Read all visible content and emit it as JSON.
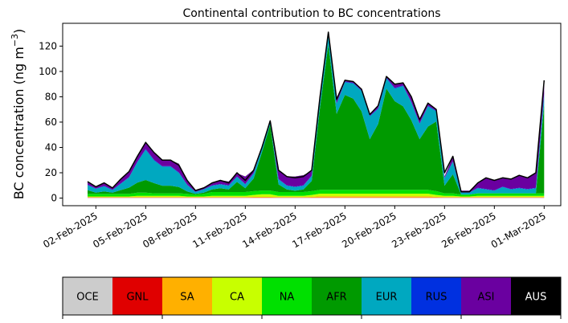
{
  "chart_data": {
    "type": "area",
    "title": "Continental contribution to BC concentrations",
    "ylabel_main": "BC concentration (ng m",
    "ylabel_exp": "−3",
    "ylabel_close": ")",
    "stacked": true,
    "xlim": [
      "2025-01-31T00:00",
      "2025-03-02T00:00"
    ],
    "ylim": [
      -6,
      138
    ],
    "y_ticks": [
      0,
      20,
      40,
      60,
      80,
      100,
      120
    ],
    "x_ticks": [
      {
        "date": "2025-02-02",
        "label": "02-Feb-2025"
      },
      {
        "date": "2025-02-05",
        "label": "05-Feb-2025"
      },
      {
        "date": "2025-02-08",
        "label": "08-Feb-2025"
      },
      {
        "date": "2025-02-11",
        "label": "11-Feb-2025"
      },
      {
        "date": "2025-02-14",
        "label": "14-Feb-2025"
      },
      {
        "date": "2025-02-17",
        "label": "17-Feb-2025"
      },
      {
        "date": "2025-02-20",
        "label": "20-Feb-2025"
      },
      {
        "date": "2025-02-23",
        "label": "23-Feb-2025"
      },
      {
        "date": "2025-02-26",
        "label": "26-Feb-2025"
      },
      {
        "date": "2025-03-01",
        "label": "01-Mar-2025"
      }
    ],
    "x": [
      "2025-02-01T12:00",
      "2025-02-02T00:00",
      "2025-02-02T12:00",
      "2025-02-03T00:00",
      "2025-02-03T12:00",
      "2025-02-04T00:00",
      "2025-02-04T12:00",
      "2025-02-05T00:00",
      "2025-02-05T12:00",
      "2025-02-06T00:00",
      "2025-02-06T12:00",
      "2025-02-07T00:00",
      "2025-02-07T12:00",
      "2025-02-08T00:00",
      "2025-02-08T12:00",
      "2025-02-09T00:00",
      "2025-02-09T12:00",
      "2025-02-10T00:00",
      "2025-02-10T12:00",
      "2025-02-11T00:00",
      "2025-02-11T12:00",
      "2025-02-12T00:00",
      "2025-02-12T12:00",
      "2025-02-13T00:00",
      "2025-02-13T12:00",
      "2025-02-14T00:00",
      "2025-02-14T12:00",
      "2025-02-15T00:00",
      "2025-02-15T12:00",
      "2025-02-16T00:00",
      "2025-02-16T12:00",
      "2025-02-17T00:00",
      "2025-02-17T12:00",
      "2025-02-18T00:00",
      "2025-02-18T12:00",
      "2025-02-19T00:00",
      "2025-02-19T12:00",
      "2025-02-20T00:00",
      "2025-02-20T12:00",
      "2025-02-21T00:00",
      "2025-02-21T12:00",
      "2025-02-22T00:00",
      "2025-02-22T12:00",
      "2025-02-23T00:00",
      "2025-02-23T12:00",
      "2025-02-24T00:00",
      "2025-02-24T12:00",
      "2025-02-25T00:00",
      "2025-02-25T12:00",
      "2025-02-26T00:00",
      "2025-02-26T12:00",
      "2025-02-27T00:00",
      "2025-02-27T12:00",
      "2025-02-28T00:00",
      "2025-02-28T12:00",
      "2025-03-01T00:00"
    ],
    "total": [
      13,
      9,
      12,
      8,
      15,
      21,
      33,
      44,
      36,
      30,
      30,
      26,
      14,
      6,
      8,
      12,
      14,
      12,
      20,
      14,
      22,
      40,
      61,
      22,
      17,
      16,
      17,
      22,
      80,
      131,
      78,
      93,
      92,
      86,
      66,
      73,
      96,
      90,
      91,
      80,
      62,
      75,
      70,
      20,
      33,
      5,
      5,
      12,
      16,
      14,
      16,
      15,
      18,
      16,
      20,
      93
    ],
    "series": [
      {
        "name": "OCE",
        "color": "#cccccc",
        "values": [
          0.3,
          0.3,
          0.3,
          0.3,
          0.3,
          0.3,
          0.3,
          0.3,
          0.3,
          0.3,
          0.3,
          0.3,
          0.3,
          0.3,
          0.3,
          0.3,
          0.3,
          0.3,
          0.3,
          0.3,
          0.3,
          0.3,
          0.3,
          0.3,
          0.3,
          0.3,
          0.3,
          0.3,
          0.3,
          0.3,
          0.3,
          0.3,
          0.3,
          0.3,
          0.3,
          0.3,
          0.3,
          0.3,
          0.3,
          0.3,
          0.3,
          0.3,
          0.3,
          0.3,
          0.3,
          0.3,
          0.3,
          0.3,
          0.3,
          0.3,
          0.3,
          0.3,
          0.3,
          0.3,
          0.3,
          0.3
        ]
      },
      {
        "name": "GNL",
        "color": "#e00000",
        "values": [
          0.2,
          0.2,
          0.2,
          0.2,
          0.2,
          0.2,
          0.2,
          0.2,
          0.2,
          0.2,
          0.2,
          0.2,
          0.2,
          0.2,
          0.2,
          0.2,
          0.2,
          0.2,
          0.2,
          0.2,
          0.2,
          0.2,
          0.2,
          0.2,
          0.2,
          0.2,
          0.2,
          0.2,
          0.2,
          0.2,
          0.2,
          0.2,
          0.2,
          0.2,
          0.2,
          0.2,
          0.2,
          0.2,
          0.2,
          0.2,
          0.2,
          0.2,
          0.2,
          0.2,
          0.2,
          0.2,
          0.2,
          0.2,
          0.2,
          0.2,
          0.2,
          0.2,
          0.2,
          0.2,
          0.2,
          0.2
        ]
      },
      {
        "name": "SA",
        "color": "#ffb000",
        "values": [
          0.3,
          0.3,
          0.3,
          0.3,
          0.3,
          0.3,
          0.3,
          0.3,
          0.3,
          0.3,
          0.3,
          0.3,
          0.3,
          0.3,
          0.3,
          0.3,
          0.3,
          0.3,
          0.3,
          0.3,
          0.5,
          0.5,
          0.5,
          0.3,
          0.3,
          0.3,
          0.3,
          0.5,
          1,
          1,
          1,
          1,
          1,
          1,
          1,
          1,
          1,
          1,
          1,
          1,
          1,
          1,
          0.5,
          0.3,
          0.3,
          0.3,
          0.3,
          0.3,
          0.3,
          0.3,
          0.3,
          0.3,
          0.3,
          0.3,
          0.3,
          0.3
        ]
      },
      {
        "name": "CA",
        "color": "#c8ff00",
        "values": [
          0.5,
          0.5,
          0.5,
          0.5,
          0.5,
          0.5,
          1,
          1,
          1,
          1,
          1,
          1,
          0.5,
          0.5,
          0.5,
          1,
          1,
          1,
          1,
          1,
          1.5,
          2,
          2,
          1,
          1,
          1,
          1,
          1.5,
          2,
          2,
          2,
          2,
          2,
          2,
          2,
          2,
          2,
          2,
          2,
          2,
          2,
          2,
          1.5,
          1,
          1,
          0.5,
          0.5,
          1,
          1,
          1,
          1,
          1,
          1,
          1,
          1,
          1
        ]
      },
      {
        "name": "NA",
        "color": "#00e000",
        "values": [
          2,
          2,
          2,
          2,
          2,
          2,
          2.5,
          2.5,
          2,
          2,
          2,
          2,
          2,
          1.5,
          2,
          3,
          3,
          3,
          3,
          3,
          3,
          3,
          3,
          3,
          3,
          3,
          3,
          3,
          3,
          3,
          3,
          3,
          3,
          3,
          3,
          3,
          3,
          3,
          3,
          3,
          3,
          3,
          3,
          2,
          2,
          1.5,
          1.5,
          2,
          2,
          2,
          2,
          2,
          2,
          2,
          2,
          2
        ]
      },
      {
        "name": "AFR",
        "color": "#009a00",
        "values": [
          3,
          1,
          2,
          1,
          3,
          5,
          8,
          10,
          8,
          6,
          6,
          5,
          2,
          0.5,
          1,
          2,
          3,
          2,
          8,
          3,
          10,
          30,
          52,
          6,
          2,
          1,
          2,
          8,
          65,
          115,
          60,
          75,
          72,
          62,
          40,
          52,
          80,
          70,
          66,
          55,
          40,
          50,
          55,
          6,
          15,
          0,
          0,
          0,
          0,
          0,
          0,
          0,
          0,
          0,
          0,
          70
        ]
      },
      {
        "name": "EUR",
        "color": "#00a8c0",
        "values": [
          4,
          3,
          4,
          2,
          5,
          8,
          16,
          24,
          18,
          15,
          15,
          11,
          5,
          1.5,
          2.5,
          3,
          3,
          3,
          4,
          3,
          4,
          3,
          2,
          4,
          3,
          3,
          3,
          4,
          6,
          8,
          8,
          10,
          12,
          16,
          18,
          12,
          8,
          10,
          16,
          14,
          12,
          16,
          8,
          6,
          10,
          1.5,
          1.5,
          4,
          3,
          2,
          5,
          3,
          4,
          3,
          4,
          8
        ]
      },
      {
        "name": "RUS",
        "color": "#0030e0",
        "values": [
          0.3,
          0.3,
          0.3,
          0.3,
          0.3,
          0.3,
          0.5,
          0.5,
          0.5,
          0.5,
          0.5,
          0.5,
          0.3,
          0.3,
          0.3,
          0.3,
          0.3,
          0.3,
          0.3,
          0.3,
          0.3,
          0.3,
          0.3,
          0.3,
          0.3,
          0.3,
          0.3,
          0.3,
          0.5,
          0.5,
          0.5,
          0.5,
          0.5,
          0.5,
          0.5,
          0.5,
          0.5,
          0.5,
          0.5,
          0.5,
          0.5,
          0.5,
          0.5,
          0.3,
          0.3,
          0.3,
          0.3,
          0.3,
          0.3,
          0.3,
          0.3,
          0.3,
          0.3,
          0.3,
          0.3,
          0.5
        ]
      },
      {
        "name": "ASI",
        "color": "#6a00a0",
        "values": [
          2.4,
          1.5,
          2.4,
          1.1,
          3.4,
          4.7,
          3.7,
          5.4,
          5.9,
          4.7,
          4.7,
          6.7,
          3.4,
          1.2,
          1.4,
          1.9,
          2.9,
          2.9,
          2.4,
          5.9,
          2.4,
          0.7,
          0.4,
          7.1,
          6.9,
          7.9,
          7.9,
          3.7,
          1.7,
          0.7,
          2.7,
          0.7,
          0.7,
          0.7,
          0.7,
          1.7,
          0.7,
          2.7,
          1.7,
          3.7,
          2.7,
          1.7,
          0.7,
          0.9,
          3.6,
          1.2,
          1.2,
          4.1,
          8.6,
          7.6,
          6.6,
          7.6,
          9.6,
          8.6,
          11.6,
          10.6
        ]
      },
      {
        "name": "AUS",
        "color": "#000000",
        "values": [
          0.1,
          0.1,
          0.1,
          0.1,
          0.1,
          0.1,
          0.1,
          0.1,
          0.1,
          0.1,
          0.1,
          0.1,
          0.1,
          0.1,
          0.1,
          0.1,
          0.1,
          0.1,
          0.1,
          0.1,
          0.1,
          0.1,
          0.1,
          0.1,
          0.1,
          0.1,
          0.1,
          0.1,
          0.1,
          0.1,
          0.1,
          0.1,
          0.1,
          0.1,
          0.1,
          0.1,
          0.1,
          0.1,
          0.1,
          0.1,
          0.1,
          0.1,
          0.1,
          0.1,
          0.1,
          0.1,
          0.1,
          0.1,
          0.1,
          0.1,
          0.1,
          0.1,
          0.1,
          0.1,
          0.1,
          0.1
        ]
      }
    ],
    "legend_placement": "bottom",
    "grid": false
  }
}
